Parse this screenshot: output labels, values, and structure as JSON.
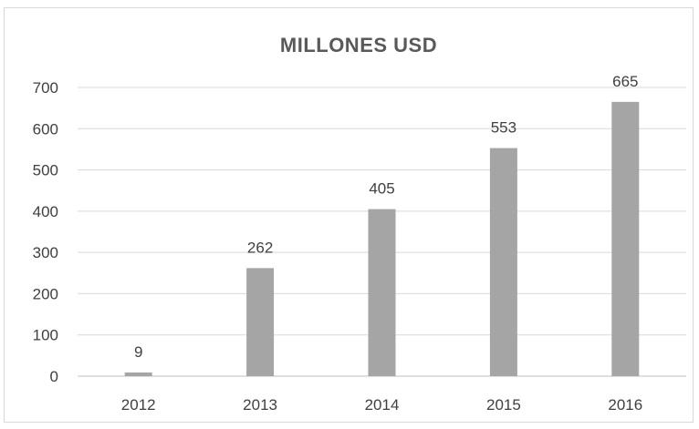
{
  "chart_data": {
    "type": "bar",
    "title": "MILLONES USD",
    "categories": [
      "2012",
      "2013",
      "2014",
      "2015",
      "2016"
    ],
    "values": [
      9,
      262,
      405,
      553,
      665
    ],
    "data_labels": [
      "9",
      "262",
      "405",
      "553",
      "665"
    ],
    "ylim": [
      0,
      700
    ],
    "yticks": [
      0,
      100,
      200,
      300,
      400,
      500,
      600,
      700
    ],
    "xlabel": "",
    "ylabel": "",
    "grid": true,
    "legend": "none",
    "bar_color": "#a5a5a5"
  }
}
